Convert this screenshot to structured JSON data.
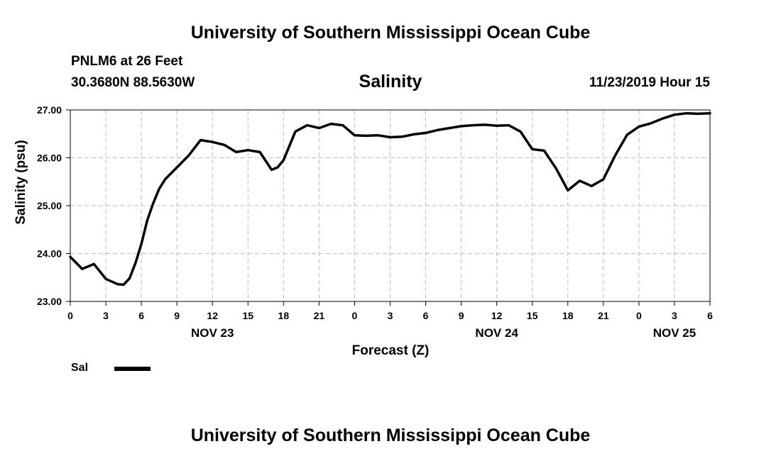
{
  "header": {
    "title": "University of Southern Mississippi Ocean Cube",
    "station": "PNLM6 at 26 Feet",
    "coords": "30.3680N 88.5630W",
    "parameter": "Salinity",
    "datetime": "11/23/2019 Hour 15"
  },
  "footer": {
    "title": "University of Southern Mississippi Ocean Cube"
  },
  "legend": {
    "label": "Sal",
    "color": "#000000"
  },
  "chart_data": {
    "type": "line",
    "xlabel": "Forecast (Z)",
    "ylabel": "Salinity (psu)",
    "ylim": [
      23.0,
      27.0
    ],
    "yticks": [
      "27.00",
      "26.00",
      "25.00",
      "24.00",
      "23.00"
    ],
    "x_hour_ticks": [
      "0",
      "3",
      "6",
      "9",
      "12",
      "15",
      "18",
      "21",
      "0",
      "3",
      "6",
      "9",
      "12",
      "15",
      "18",
      "21",
      "0",
      "3",
      "6"
    ],
    "x_day_labels": [
      {
        "label": "NOV 23",
        "hour": 12
      },
      {
        "label": "NOV 24",
        "hour": 36
      },
      {
        "label": "NOV 25",
        "hour": 51
      }
    ],
    "xlim": [
      0,
      54
    ],
    "grid": true,
    "legend_position": "bottom-left",
    "series": [
      {
        "name": "Sal",
        "color": "#000000",
        "x": [
          0,
          1,
          2,
          3,
          4,
          4.5,
          5,
          5.5,
          6,
          6.5,
          7,
          7.5,
          8,
          9,
          10,
          11,
          12,
          13,
          14,
          15,
          16,
          17,
          17.5,
          18,
          19,
          20,
          21,
          22,
          23,
          24,
          25,
          26,
          27,
          28,
          29,
          30,
          31,
          32,
          33,
          34,
          35,
          36,
          37,
          38,
          39,
          40,
          41,
          42,
          43,
          44,
          45,
          46,
          47,
          48,
          49,
          50,
          51,
          52,
          53,
          54
        ],
        "values": [
          23.93,
          23.68,
          23.78,
          23.47,
          23.36,
          23.35,
          23.48,
          23.8,
          24.2,
          24.7,
          25.05,
          25.35,
          25.55,
          25.8,
          26.05,
          26.37,
          26.33,
          26.27,
          26.12,
          26.16,
          26.12,
          25.75,
          25.8,
          25.95,
          26.55,
          26.68,
          26.62,
          26.71,
          26.68,
          26.47,
          26.46,
          26.47,
          26.43,
          26.44,
          26.49,
          26.52,
          26.58,
          26.62,
          26.66,
          26.68,
          26.69,
          26.67,
          26.68,
          26.55,
          26.18,
          26.15,
          25.78,
          25.32,
          25.52,
          25.41,
          25.55,
          26.05,
          26.48,
          26.65,
          26.72,
          26.82,
          26.9,
          26.93,
          26.92,
          26.93
        ]
      }
    ]
  }
}
